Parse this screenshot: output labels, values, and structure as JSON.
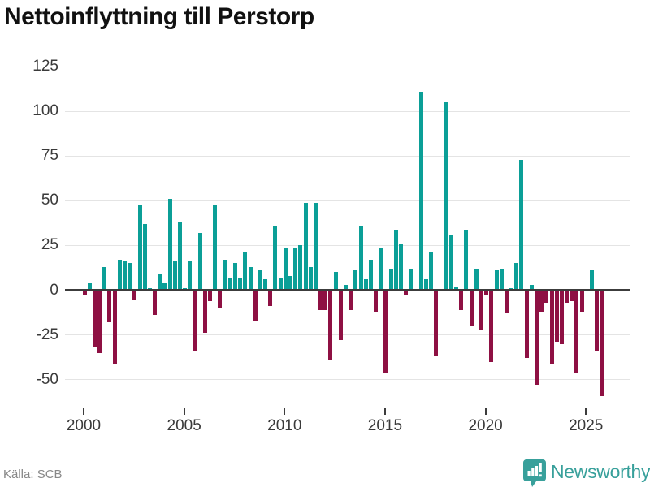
{
  "title": "Nettoinflyttning till Perstorp",
  "source": "Källa: SCB",
  "brand": {
    "name": "Newsworthy"
  },
  "colors": {
    "positive": "#0b9f97",
    "negative": "#8e1043",
    "grid": "#e4e4e4",
    "axis": "#3c3c3c",
    "tick_text": "#3a3a3a",
    "title_text": "#111111",
    "source_text": "#888888",
    "brand_teal": "#38a09b"
  },
  "chart_data": {
    "type": "bar",
    "title": "Nettoinflyttning till Perstorp",
    "xlabel": "",
    "ylabel": "",
    "frequency": "quarterly",
    "start_year": 2000,
    "start_quarter": 1,
    "x_ticks": [
      2000,
      2005,
      2010,
      2015,
      2020,
      2025
    ],
    "y_ticks": [
      125,
      100,
      75,
      50,
      25,
      0,
      -25,
      -50
    ],
    "ylim": [
      -67,
      131
    ],
    "grid": "horizontal",
    "legend": "none",
    "positive_color": "#0b9f97",
    "negative_color": "#8e1043",
    "values": [
      -3,
      4,
      -32,
      -35,
      13,
      -18,
      -41,
      17,
      16,
      15,
      -5,
      48,
      37,
      1,
      -14,
      9,
      4,
      51,
      16,
      38,
      1,
      16,
      -34,
      32,
      -24,
      -6,
      48,
      -10,
      17,
      7,
      15,
      7,
      21,
      13,
      -17,
      11,
      6,
      -9,
      36,
      7,
      24,
      8,
      24,
      25,
      49,
      13,
      49,
      -11,
      -11,
      -39,
      10,
      -28,
      3,
      -11,
      11,
      36,
      6,
      17,
      -12,
      24,
      -46,
      12,
      34,
      26,
      -3,
      12,
      0,
      111,
      6,
      21,
      -37,
      0,
      105,
      31,
      2,
      -11,
      34,
      -20,
      12,
      -22,
      -3,
      -40,
      11,
      12,
      -13,
      1,
      15,
      73,
      -38,
      3,
      -53,
      -12,
      -7,
      -41,
      -29,
      -30,
      -7,
      -6,
      -46,
      -12,
      0,
      11,
      -34,
      -59
    ]
  }
}
